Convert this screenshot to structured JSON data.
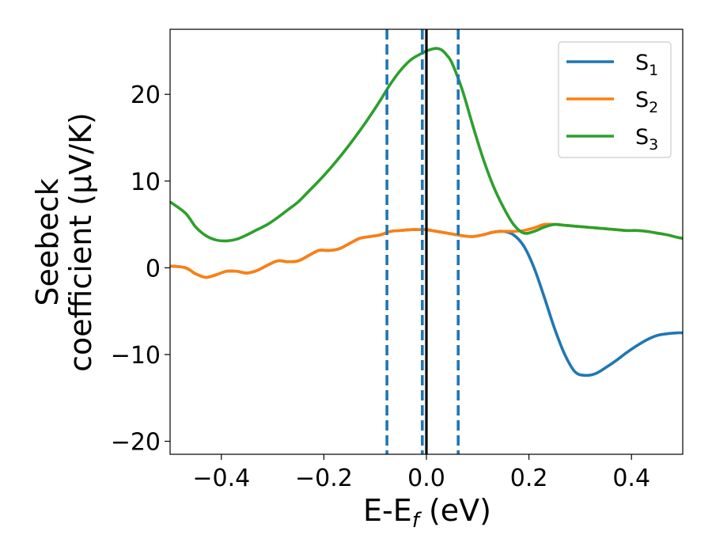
{
  "chart_data": {
    "type": "line",
    "xlabel_main": "E-E",
    "xlabel_sub": "f",
    "xlabel_unit": " (eV)",
    "ylabel_line1": "Seebeck",
    "ylabel_line2": "coefficient  (μV/K)",
    "xlim": [
      -0.5,
      0.5
    ],
    "ylim": [
      -21.5,
      27.5
    ],
    "grid": false,
    "legend_position": "top-right",
    "x_ticks": [
      -0.4,
      -0.2,
      0.0,
      0.2,
      0.4
    ],
    "x_tick_labels": [
      "−0.4",
      "−0.2",
      "0.0",
      "0.2",
      "0.4"
    ],
    "y_ticks": [
      -20,
      -10,
      0,
      10,
      20
    ],
    "y_tick_labels": [
      "−20",
      "−10",
      "0",
      "10",
      "20"
    ],
    "vertical_lines": [
      {
        "x": -0.077,
        "style": "dashed",
        "color": "#1f77b4"
      },
      {
        "x": -0.008,
        "style": "dashed",
        "color": "#1f77b4"
      },
      {
        "x": 0.062,
        "style": "dashed",
        "color": "#1f77b4"
      },
      {
        "x": 0.0,
        "style": "solid",
        "color": "#000000"
      }
    ],
    "series": [
      {
        "name": "S",
        "subscript": "1",
        "color": "#1f77b4",
        "x": [
          -0.5,
          -0.47,
          -0.45,
          -0.43,
          -0.41,
          -0.39,
          -0.37,
          -0.35,
          -0.33,
          -0.31,
          -0.29,
          -0.27,
          -0.25,
          -0.23,
          -0.21,
          -0.19,
          -0.17,
          -0.15,
          -0.13,
          -0.11,
          -0.09,
          -0.07,
          -0.05,
          -0.03,
          -0.01,
          0.0,
          0.01,
          0.03,
          0.05,
          0.07,
          0.09,
          0.11,
          0.13,
          0.15,
          0.17,
          0.19,
          0.21,
          0.23,
          0.25,
          0.27,
          0.29,
          0.31,
          0.33,
          0.35,
          0.37,
          0.39,
          0.41,
          0.43,
          0.45,
          0.47,
          0.49,
          0.5
        ],
        "y": [
          0.2,
          0.0,
          -0.7,
          -1.1,
          -0.8,
          -0.4,
          -0.4,
          -0.6,
          -0.3,
          0.3,
          0.8,
          0.7,
          0.8,
          1.4,
          2.0,
          2.0,
          2.2,
          2.8,
          3.4,
          3.6,
          3.8,
          4.2,
          4.3,
          4.4,
          4.4,
          4.4,
          4.3,
          4.1,
          3.9,
          3.7,
          3.6,
          3.8,
          4.1,
          4.2,
          3.8,
          2.5,
          0.0,
          -3.4,
          -7.0,
          -10.0,
          -12.0,
          -12.4,
          -12.2,
          -11.5,
          -10.7,
          -9.8,
          -9.0,
          -8.3,
          -7.8,
          -7.6,
          -7.5,
          -7.5
        ]
      },
      {
        "name": "S",
        "subscript": "2",
        "color": "#ff7f0e",
        "x": [
          -0.5,
          -0.47,
          -0.45,
          -0.43,
          -0.41,
          -0.39,
          -0.37,
          -0.35,
          -0.33,
          -0.31,
          -0.29,
          -0.27,
          -0.25,
          -0.23,
          -0.21,
          -0.19,
          -0.17,
          -0.15,
          -0.13,
          -0.11,
          -0.09,
          -0.07,
          -0.05,
          -0.03,
          -0.01,
          0.0,
          0.01,
          0.03,
          0.05,
          0.07,
          0.09,
          0.11,
          0.13,
          0.15,
          0.17,
          0.19,
          0.21,
          0.23,
          0.25,
          0.27,
          0.29,
          0.31,
          0.33,
          0.35,
          0.37,
          0.39,
          0.41,
          0.43,
          0.45,
          0.47,
          0.49,
          0.5
        ],
        "y": [
          0.2,
          0.0,
          -0.7,
          -1.1,
          -0.8,
          -0.4,
          -0.4,
          -0.6,
          -0.3,
          0.3,
          0.8,
          0.7,
          0.8,
          1.4,
          2.0,
          2.0,
          2.2,
          2.8,
          3.4,
          3.6,
          3.8,
          4.2,
          4.3,
          4.4,
          4.4,
          4.4,
          4.3,
          4.1,
          3.9,
          3.7,
          3.6,
          3.8,
          4.1,
          4.2,
          4.2,
          4.3,
          4.6,
          5.0,
          5.0,
          4.9,
          4.8,
          4.7,
          4.6,
          4.5,
          4.4,
          4.3,
          4.3,
          4.2,
          4.0,
          3.8,
          3.5,
          3.4
        ]
      },
      {
        "name": "S",
        "subscript": "3",
        "color": "#2ca02c",
        "x": [
          -0.5,
          -0.47,
          -0.45,
          -0.43,
          -0.41,
          -0.39,
          -0.37,
          -0.35,
          -0.33,
          -0.31,
          -0.29,
          -0.27,
          -0.25,
          -0.23,
          -0.21,
          -0.19,
          -0.17,
          -0.15,
          -0.13,
          -0.11,
          -0.09,
          -0.07,
          -0.05,
          -0.03,
          -0.01,
          0.0,
          0.01,
          0.02,
          0.03,
          0.04,
          0.05,
          0.07,
          0.09,
          0.11,
          0.13,
          0.15,
          0.17,
          0.19,
          0.21,
          0.23,
          0.25,
          0.27,
          0.29,
          0.31,
          0.33,
          0.35,
          0.37,
          0.39,
          0.41,
          0.43,
          0.45,
          0.47,
          0.49,
          0.5
        ],
        "y": [
          7.6,
          6.3,
          4.7,
          3.7,
          3.2,
          3.1,
          3.3,
          3.8,
          4.4,
          5.0,
          5.8,
          6.7,
          7.6,
          8.8,
          10.0,
          11.3,
          12.7,
          14.2,
          15.8,
          17.5,
          19.3,
          21.2,
          22.8,
          24.0,
          24.7,
          25.0,
          25.2,
          25.3,
          25.1,
          24.5,
          23.6,
          20.5,
          16.5,
          12.7,
          9.5,
          7.0,
          5.0,
          4.0,
          4.2,
          4.7,
          5.0,
          4.9,
          4.8,
          4.7,
          4.6,
          4.5,
          4.4,
          4.3,
          4.3,
          4.2,
          4.0,
          3.8,
          3.5,
          3.4
        ]
      }
    ]
  }
}
